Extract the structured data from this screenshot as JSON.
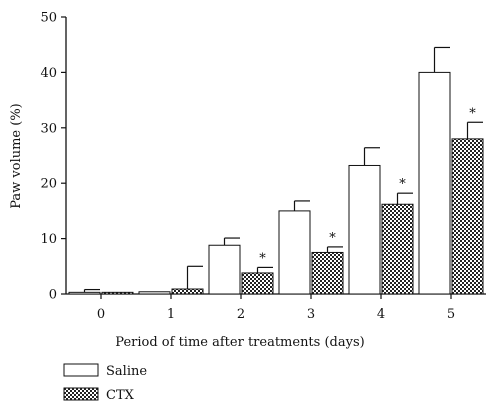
{
  "chart_data": {
    "type": "bar",
    "categories": [
      "0",
      "1",
      "2",
      "3",
      "4",
      "5"
    ],
    "xlabel": "Period of time after treatments (days)",
    "ylabel": "Paw volume (%)",
    "ylim": [
      0,
      50
    ],
    "yticks": [
      0,
      10,
      20,
      30,
      40,
      50
    ],
    "grid": false,
    "legend_position": "bottom-left",
    "series": [
      {
        "name": "Saline",
        "pattern": "white",
        "values": [
          0.3,
          0.4,
          8.8,
          15.0,
          23.2,
          40.0
        ],
        "errors": [
          0.5,
          0.0,
          1.3,
          1.8,
          3.2,
          4.5
        ],
        "significance": [
          "",
          "",
          "",
          "",
          "",
          ""
        ]
      },
      {
        "name": "CTX",
        "pattern": "checker",
        "values": [
          0.3,
          0.9,
          3.8,
          7.5,
          16.2,
          28.0
        ],
        "errors": [
          0.0,
          4.1,
          1.0,
          1.0,
          2.0,
          3.0
        ],
        "significance": [
          "",
          "",
          "*",
          "*",
          "*",
          "*"
        ]
      }
    ]
  },
  "colors": {
    "axis": "#111111",
    "bar_fill_saline": "#ffffff",
    "checker_dark": "#222222",
    "checker_light": "#ffffff"
  }
}
